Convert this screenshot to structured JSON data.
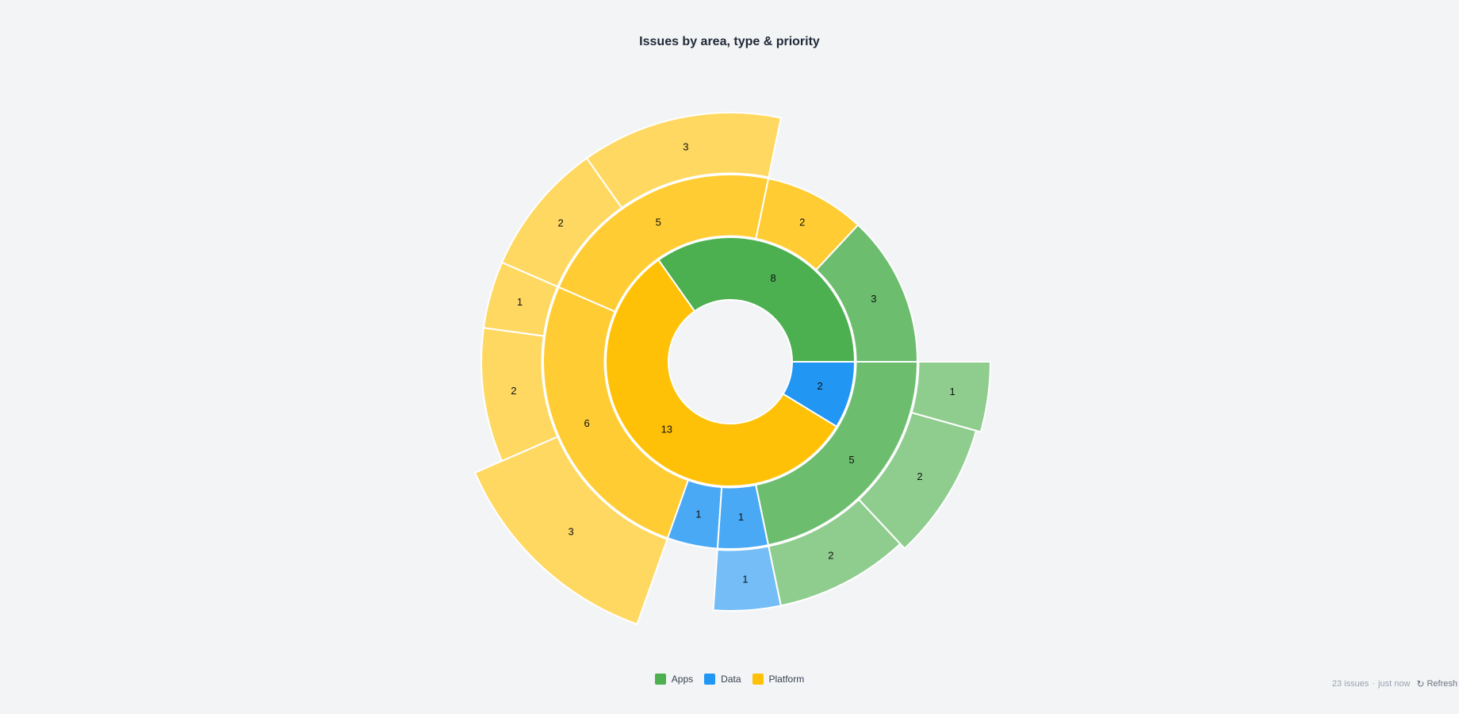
{
  "chart_data": {
    "type": "sunburst",
    "title": "Issues by area, type & priority",
    "total": 23,
    "rings": [
      [
        {
          "label": "8",
          "value": 8,
          "group": "Apps"
        },
        {
          "label": "13",
          "value": 13,
          "group": "Platform"
        },
        {
          "label": "2",
          "value": 2,
          "group": "Data"
        }
      ],
      [
        {
          "label": "3",
          "value": 3,
          "group": "Apps"
        },
        {
          "label": "2",
          "value": 2,
          "group": "Platform"
        },
        {
          "label": "5",
          "value": 5,
          "group": "Platform"
        },
        {
          "label": "6",
          "value": 6,
          "group": "Platform"
        },
        {
          "label": "1",
          "value": 1,
          "group": "Data"
        },
        {
          "label": "1",
          "value": 1,
          "group": "Data"
        },
        {
          "label": "5",
          "value": 5,
          "group": "Apps"
        }
      ],
      [
        {
          "label": "",
          "value": 3,
          "group": null
        },
        {
          "label": "",
          "value": 2,
          "group": null
        },
        {
          "label": "3",
          "value": 3,
          "group": "Platform"
        },
        {
          "label": "2",
          "value": 2,
          "group": "Platform"
        },
        {
          "label": "1",
          "value": 1,
          "group": "Platform"
        },
        {
          "label": "2",
          "value": 2,
          "group": "Platform"
        },
        {
          "label": "3",
          "value": 3,
          "group": "Platform"
        },
        {
          "label": "",
          "value": 1,
          "group": null
        },
        {
          "label": "1",
          "value": 1,
          "group": "Data"
        },
        {
          "label": "2",
          "value": 2,
          "group": "Apps"
        },
        {
          "label": "2",
          "value": 2,
          "group": "Apps"
        },
        {
          "label": "1",
          "value": 1,
          "group": "Apps"
        }
      ]
    ],
    "legend": {
      "placement": "bottom-center",
      "items": [
        {
          "name": "Apps",
          "color": "#4caf50"
        },
        {
          "name": "Data",
          "color": "#2196f3"
        },
        {
          "name": "Platform",
          "color": "#ffc107"
        }
      ]
    },
    "ring_colors": {
      "Apps": [
        "#4caf50",
        "#6dbd6f",
        "#8fcd8f"
      ],
      "Data": [
        "#2196f3",
        "#4aa9f5",
        "#74bdf7"
      ],
      "Platform": [
        "#ffc107",
        "#ffcc33",
        "#ffd862"
      ]
    }
  },
  "footer": {
    "count": "23 issues",
    "separator": "·",
    "updated": "just now",
    "refresh_label": "Refresh",
    "refresh_icon": "↻"
  }
}
